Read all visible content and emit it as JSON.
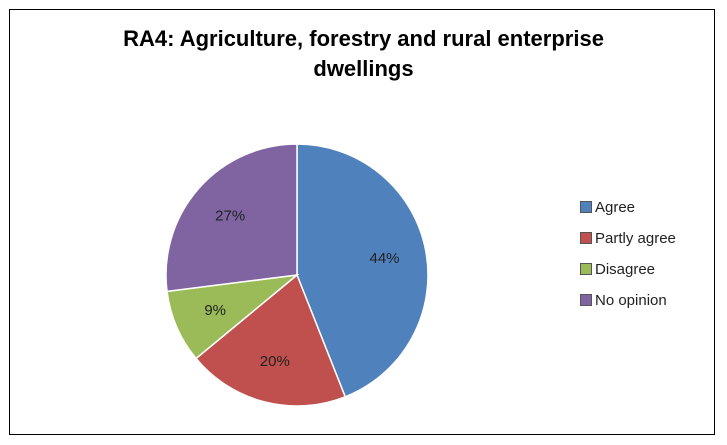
{
  "chart_data": {
    "type": "pie",
    "title_lines": [
      "RA4:  Agriculture, forestry and rural enterprise",
      "dwellings"
    ],
    "categories": [
      "Agree",
      "Partly agree",
      "Disagree",
      "No opinion"
    ],
    "values": [
      44,
      20,
      9,
      27
    ],
    "labels": [
      "44%",
      "20%",
      "9%",
      "27%"
    ],
    "colors": [
      "#4F81BD",
      "#C0504D",
      "#9BBB59",
      "#8064A2"
    ],
    "start_angle": "12 o'clock",
    "direction": "clockwise",
    "legend_position": "right"
  }
}
